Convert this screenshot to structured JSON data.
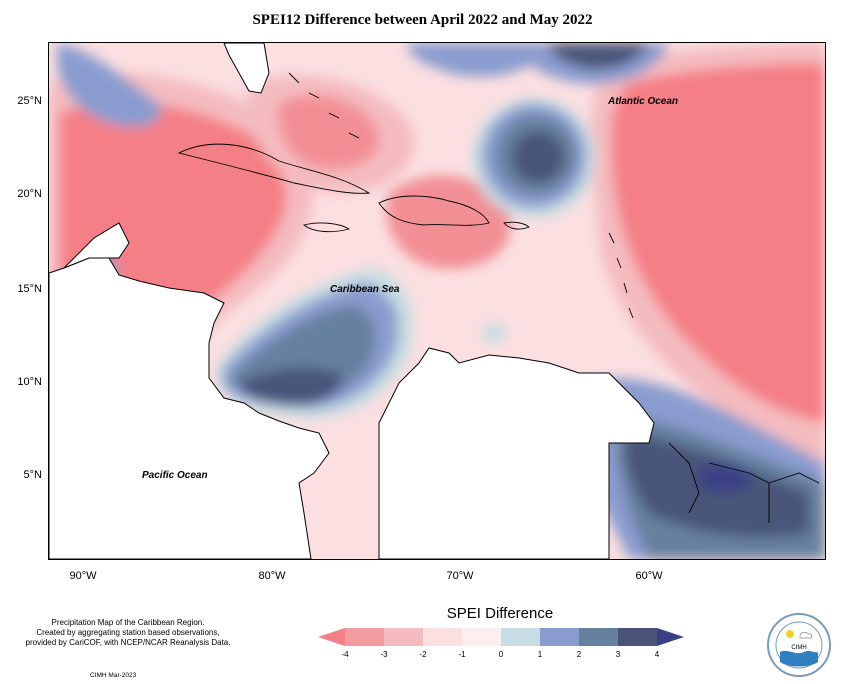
{
  "title": "SPEI12 Difference between April 2022 and May 2022",
  "map": {
    "lat_labels": [
      "25°N",
      "20°N",
      "15°N",
      "10°N",
      "5°N"
    ],
    "lon_labels": [
      "90°W",
      "80°W",
      "70°W",
      "60°W"
    ],
    "ocean_labels": {
      "atlantic": "Atlantic Ocean",
      "caribbean": "Caribbean Sea",
      "pacific": "Pacific Ocean"
    },
    "colors": {
      "land_outside": "#ffffff",
      "minus4": "#f47f86",
      "minus3": "#f28f95",
      "minus2": "#f4bcc0",
      "minus1": "#fbdfe1",
      "zero": "#c7dde3",
      "plus1": "#8a9ccf",
      "plus2": "#66809f",
      "plus3": "#4a5479",
      "plus4": "#3b3f86"
    }
  },
  "legend": {
    "title": "SPEI Difference",
    "ticks": [
      "-4",
      "-3",
      "-2",
      "-1",
      "0",
      "1",
      "2",
      "3",
      "4"
    ],
    "colors": [
      "#f47f86",
      "#f29ca2",
      "#f4bcc0",
      "#fbdfe1",
      "#fdeef0",
      "#c7dde3",
      "#8a9ccf",
      "#66809f",
      "#4a5479",
      "#3b3f86"
    ]
  },
  "credits": {
    "line1": "Precipitation Map of the Caribbean Region.",
    "line2": "Created by aggregating station based observations,",
    "line3": "provided by CariCOF, with NCEP/NCAR Reanalysis Data."
  },
  "footer": "CIMH Mar-2023",
  "logo": {
    "text": "CIMH",
    "ring_text": "CARIBBEAN INSTITUTE FOR METEOROLOGY AND HYDROLOGY"
  }
}
